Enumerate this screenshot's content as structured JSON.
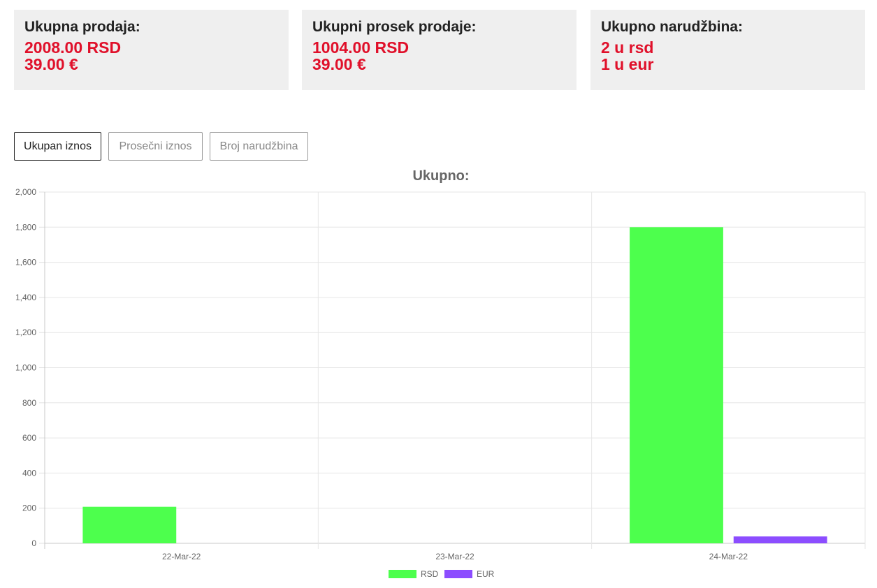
{
  "cards": [
    {
      "title": "Ukupna prodaja:",
      "lines": [
        "2008.00 RSD",
        "39.00 €"
      ]
    },
    {
      "title": "Ukupni prosek prodaje:",
      "lines": [
        "1004.00 RSD",
        "39.00 €"
      ]
    },
    {
      "title": "Ukupno narudžbina:",
      "lines": [
        "2 u rsd",
        "1 u eur"
      ]
    }
  ],
  "tabs": [
    {
      "label": "Ukupan iznos",
      "active": true
    },
    {
      "label": "Prosečni iznos",
      "active": false
    },
    {
      "label": "Broj narudžbina",
      "active": false
    }
  ],
  "chart_data": {
    "type": "bar",
    "title": "Ukupno:",
    "categories": [
      "22-Mar-22",
      "23-Mar-22",
      "24-Mar-22"
    ],
    "series": [
      {
        "name": "RSD",
        "color": "#4dff4d",
        "values": [
          208,
          0,
          1800
        ]
      },
      {
        "name": "EUR",
        "color": "#8c4dff",
        "values": [
          0,
          0,
          39
        ]
      }
    ],
    "ylim": [
      0,
      2000
    ],
    "yticks": [
      "0",
      "200",
      "400",
      "600",
      "800",
      "1,000",
      "1,200",
      "1,400",
      "1,600",
      "1,800",
      "2,000"
    ],
    "grid": true,
    "legend": "bottom"
  }
}
